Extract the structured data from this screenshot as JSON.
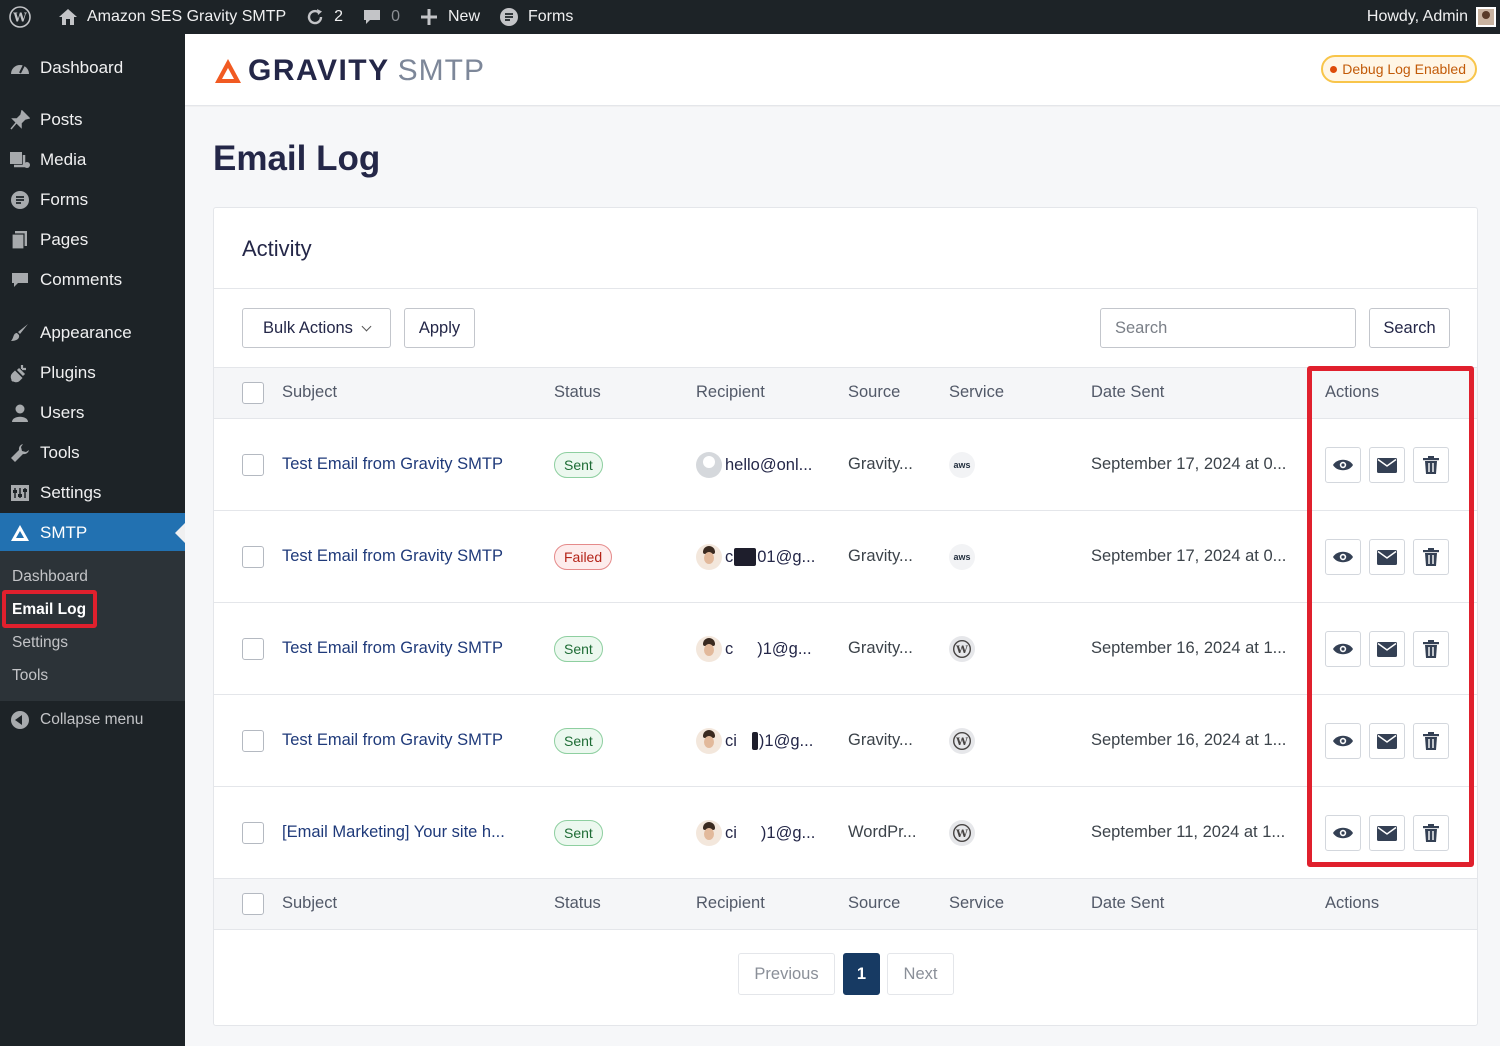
{
  "admin_bar": {
    "site_name": "Amazon SES Gravity SMTP",
    "updates_count": "2",
    "comments_count": "0",
    "new_label": "New",
    "forms_label": "Forms",
    "howdy": "Howdy, Admin"
  },
  "sidebar": {
    "items": [
      {
        "label": "Dashboard",
        "icon": "dashboard-icon"
      },
      {
        "label": "Posts",
        "icon": "pin-icon"
      },
      {
        "label": "Media",
        "icon": "media-icon"
      },
      {
        "label": "Forms",
        "icon": "forms-icon"
      },
      {
        "label": "Pages",
        "icon": "pages-icon"
      },
      {
        "label": "Comments",
        "icon": "comment-icon"
      },
      {
        "label": "Appearance",
        "icon": "brush-icon"
      },
      {
        "label": "Plugins",
        "icon": "plug-icon"
      },
      {
        "label": "Users",
        "icon": "user-icon"
      },
      {
        "label": "Tools",
        "icon": "wrench-icon"
      },
      {
        "label": "Settings",
        "icon": "settings-icon"
      },
      {
        "label": "SMTP",
        "icon": "gravity-logo-icon"
      }
    ],
    "submenu": [
      "Dashboard",
      "Email Log",
      "Settings",
      "Tools"
    ],
    "collapse_label": "Collapse menu"
  },
  "header": {
    "logo_word": "GRAVITY",
    "logo_suffix": "SMTP",
    "debug_badge": "Debug Log Enabled"
  },
  "page": {
    "title": "Email Log",
    "card_title": "Activity",
    "bulk_actions_label": "Bulk Actions",
    "apply_label": "Apply",
    "search_placeholder": "Search",
    "search_button": "Search"
  },
  "table": {
    "columns": [
      "Subject",
      "Status",
      "Recipient",
      "Source",
      "Service",
      "Date Sent",
      "Actions"
    ],
    "rows": [
      {
        "subject": "Test Email from Gravity SMTP",
        "status": "Sent",
        "recipient_a": "hello@onl...",
        "recipient_b": "",
        "avatar": "default",
        "source": "Gravity...",
        "service": "aws",
        "date": "September 17, 2024 at 0..."
      },
      {
        "subject": "Test Email from Gravity SMTP",
        "status": "Failed",
        "recipient_a": "c",
        "recipient_b": "01@g...",
        "avatar": "person",
        "source": "Gravity...",
        "service": "aws",
        "date": "September 17, 2024 at 0..."
      },
      {
        "subject": "Test Email from Gravity SMTP",
        "status": "Sent",
        "recipient_a": "c",
        "recipient_b": ")1@g...",
        "avatar": "person",
        "source": "Gravity...",
        "service": "wordpress",
        "date": "September 16, 2024 at 1..."
      },
      {
        "subject": "Test Email from Gravity SMTP",
        "status": "Sent",
        "recipient_a": "ci",
        "recipient_b": ")1@g...",
        "avatar": "person",
        "source": "Gravity...",
        "service": "wordpress",
        "date": "September 16, 2024 at 1..."
      },
      {
        "subject": "[Email Marketing] Your site h...",
        "status": "Sent",
        "recipient_a": "ci",
        "recipient_b": ")1@g...",
        "avatar": "person",
        "source": "WordPr...",
        "service": "wordpress",
        "date": "September 11, 2024 at 1..."
      }
    ],
    "aws_label": "aws"
  },
  "pagination": {
    "previous": "Previous",
    "current": "1",
    "next": "Next"
  },
  "colors": {
    "accent": "#2271b1",
    "brand_orange": "#f15a22",
    "highlight": "#e0202d",
    "admin_dark": "#1d2327"
  }
}
